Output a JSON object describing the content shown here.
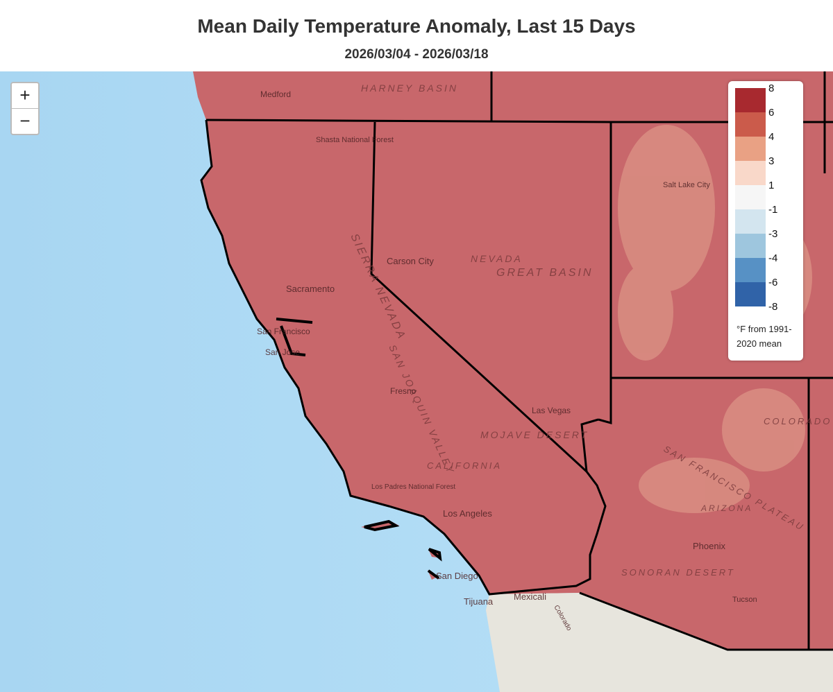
{
  "header": {
    "title": "Mean Daily Temperature Anomaly, Last 15 Days",
    "subtitle": "2026/03/04 - 2026/03/18"
  },
  "zoom": {
    "in": "+",
    "out": "−"
  },
  "legend": {
    "breaks": [
      8,
      6,
      4,
      3,
      1,
      -1,
      -3,
      -4,
      -6,
      -8
    ],
    "colors": [
      "#a8292f",
      "#cb5b4b",
      "#e9a184",
      "#f9d8c9",
      "#f6f6f6",
      "#d3e5ef",
      "#9ec6de",
      "#5791c5",
      "#3063a8"
    ],
    "note": "°F from 1991-2020 mean"
  },
  "map_labels": [
    "Medford",
    "HARNEY BASIN",
    "Shasta National Forest",
    "Sacramento",
    "SIERRA NEVADA",
    "Carson City",
    "NEVADA",
    "GREAT BASIN",
    "San Francisco",
    "San Jose",
    "SAN JOAQUIN VALLEY",
    "Fresno",
    "Las Vegas",
    "MOJAVE DESERT",
    "CALIFORNIA",
    "Los Padres National Forest",
    "Los Angeles",
    "San Diego",
    "Tijuana",
    "Mexicali",
    "Salt Lake City",
    "COLORADO PLATEAU",
    "SAN FRANCISCO PLATEAU",
    "ARIZONA",
    "Phoenix",
    "SONORAN DESERT",
    "Tucson",
    "Colorado"
  ]
}
